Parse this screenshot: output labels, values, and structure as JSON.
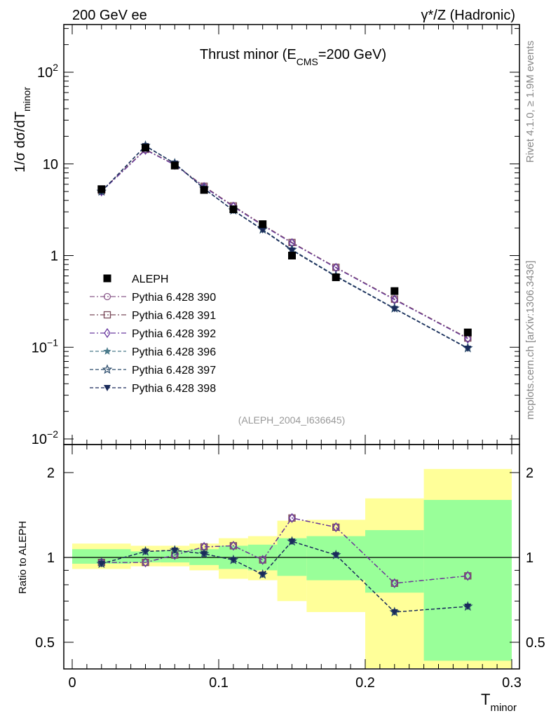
{
  "header": {
    "left": "200 GeV ee",
    "right_sym": "γ*/Z",
    "right_text": "(Hadronic)"
  },
  "plot_title": {
    "main": "Thrust minor (E",
    "sub": "CMS",
    "tail": "=200 GeV)"
  },
  "y_label": {
    "main": "1/σ  dσ/dT",
    "sub": "minor"
  },
  "x_label": {
    "main": "T",
    "sub": "minor"
  },
  "ratio_label": "Ratio to ALEPH",
  "analysis_tag": "(ALEPH_2004_I636645)",
  "side_text_top": "Rivet 4.1.0, ≥ 1.9M events",
  "side_text_bottom": "mcplots.cern.ch [arXiv:1306.3436]",
  "colors": {
    "band_yellow": "#ffff99",
    "band_green": "#99ff99",
    "data": "#000000",
    "p390": "#8b5a8b",
    "p391": "#7a4a5a",
    "p392": "#6a3aa0",
    "p396": "#4a7a8a",
    "p397": "#2a4a6a",
    "p398": "#1a2a5a"
  },
  "chart_data": [
    {
      "type": "line",
      "panel": "main",
      "yscale": "log",
      "xlim": [
        -0.01,
        0.3
      ],
      "ylim": [
        0.008,
        330
      ],
      "x_ticks": [
        0,
        0.1,
        0.2,
        0.3
      ],
      "y_ticks": [
        {
          "value": 0.01,
          "base": "10",
          "exp": "−2"
        },
        {
          "value": 0.1,
          "base": "10",
          "exp": "−1"
        },
        {
          "value": 1,
          "base": "1",
          "exp": ""
        },
        {
          "value": 10,
          "base": "10",
          "exp": ""
        },
        {
          "value": 100,
          "base": "10",
          "exp": "2"
        }
      ],
      "data": {
        "name": "ALEPH",
        "x": [
          0.02,
          0.05,
          0.07,
          0.09,
          0.11,
          0.13,
          0.15,
          0.18,
          0.22,
          0.27
        ],
        "y": [
          5.3,
          15.0,
          9.6,
          5.2,
          3.2,
          2.2,
          1.0,
          0.58,
          0.41,
          0.145
        ]
      },
      "series": [
        {
          "name": "Pythia 6.428 390",
          "marker": "circle",
          "dash": "dashdot",
          "color_key": "p390",
          "y": [
            5.05,
            14.3,
            9.8,
            5.65,
            3.45,
            2.15,
            1.38,
            0.74,
            0.33,
            0.125
          ]
        },
        {
          "name": "Pythia 6.428 391",
          "marker": "square",
          "dash": "dashdot",
          "color_key": "p391",
          "y": [
            5.1,
            14.4,
            9.85,
            5.7,
            3.48,
            2.17,
            1.39,
            0.745,
            0.335,
            0.126
          ]
        },
        {
          "name": "Pythia 6.428 392",
          "marker": "diamond",
          "dash": "dashdot",
          "color_key": "p392",
          "y": [
            5.0,
            14.2,
            9.75,
            5.6,
            3.42,
            2.13,
            1.37,
            0.735,
            0.33,
            0.124
          ]
        },
        {
          "name": "Pythia 6.428 396",
          "marker": "star",
          "dash": "dashed",
          "color_key": "p396",
          "y": [
            5.0,
            15.6,
            10.1,
            5.4,
            3.1,
            1.92,
            1.15,
            0.6,
            0.265,
            0.098
          ]
        },
        {
          "name": "Pythia 6.428 397",
          "marker": "staropen",
          "dash": "dashed",
          "color_key": "p397",
          "y": [
            5.0,
            15.8,
            10.15,
            5.4,
            3.12,
            1.93,
            1.16,
            0.6,
            0.266,
            0.098
          ]
        },
        {
          "name": "Pythia 6.428 398",
          "marker": "triangle",
          "dash": "dashed",
          "color_key": "p398",
          "y": [
            5.0,
            15.7,
            10.1,
            5.35,
            3.1,
            1.9,
            1.14,
            0.59,
            0.263,
            0.097
          ]
        }
      ],
      "legend": [
        {
          "label": "ALEPH",
          "marker": "filledsquare",
          "color_key": "data"
        },
        {
          "label": "Pythia 6.428 390",
          "marker": "circle",
          "color_key": "p390"
        },
        {
          "label": "Pythia 6.428 391",
          "marker": "square",
          "color_key": "p391"
        },
        {
          "label": "Pythia 6.428 392",
          "marker": "diamond",
          "color_key": "p392"
        },
        {
          "label": "Pythia 6.428 396",
          "marker": "star",
          "color_key": "p396"
        },
        {
          "label": "Pythia 6.428 397",
          "marker": "staropen",
          "color_key": "p397"
        },
        {
          "label": "Pythia 6.428 398",
          "marker": "triangle",
          "color_key": "p398"
        }
      ]
    },
    {
      "type": "line",
      "panel": "ratio",
      "xlim": [
        -0.01,
        0.3
      ],
      "ylim": [
        0.44,
        2.3
      ],
      "x_ticks": [
        0,
        0.1,
        0.2,
        0.3
      ],
      "x_tick_labels": [
        "0",
        "0.1",
        "0.2",
        "0.3"
      ],
      "y_ticks": [
        0.5,
        1,
        2
      ],
      "y_tick_labels": [
        "0.5",
        "1",
        "2"
      ],
      "bins": [
        {
          "lo": 0.0,
          "hi": 0.04,
          "y_lo": 0.91,
          "y_hi": 1.12,
          "g_lo": 0.95,
          "g_hi": 1.07
        },
        {
          "lo": 0.04,
          "hi": 0.06,
          "y_lo": 0.93,
          "y_hi": 1.1,
          "g_lo": 0.96,
          "g_hi": 1.05
        },
        {
          "lo": 0.06,
          "hi": 0.08,
          "y_lo": 0.93,
          "y_hi": 1.1,
          "g_lo": 0.96,
          "g_hi": 1.06
        },
        {
          "lo": 0.08,
          "hi": 0.1,
          "y_lo": 0.9,
          "y_hi": 1.12,
          "g_lo": 0.94,
          "g_hi": 1.07
        },
        {
          "lo": 0.1,
          "hi": 0.12,
          "y_lo": 0.84,
          "y_hi": 1.17,
          "g_lo": 0.91,
          "g_hi": 1.1
        },
        {
          "lo": 0.12,
          "hi": 0.14,
          "y_lo": 0.83,
          "y_hi": 1.19,
          "g_lo": 0.9,
          "g_hi": 1.11
        },
        {
          "lo": 0.14,
          "hi": 0.16,
          "y_lo": 0.7,
          "y_hi": 1.35,
          "g_lo": 0.86,
          "g_hi": 1.17
        },
        {
          "lo": 0.16,
          "hi": 0.2,
          "y_lo": 0.64,
          "y_hi": 1.36,
          "g_lo": 0.83,
          "g_hi": 1.19
        },
        {
          "lo": 0.2,
          "hi": 0.24,
          "y_lo": 0.37,
          "y_hi": 1.62,
          "g_lo": 0.75,
          "g_hi": 1.25
        },
        {
          "lo": 0.24,
          "hi": 0.3,
          "y_lo": 0.35,
          "y_hi": 2.06,
          "g_lo": 0.43,
          "g_hi": 1.6
        }
      ],
      "x": [
        0.02,
        0.05,
        0.07,
        0.09,
        0.11,
        0.13,
        0.15,
        0.18,
        0.22,
        0.27
      ],
      "series": [
        {
          "name": "Pythia 6.428 390",
          "marker": "circle",
          "dash": "dashdot",
          "color_key": "p390",
          "values": [
            0.96,
            0.96,
            1.02,
            1.09,
            1.1,
            0.98,
            1.38,
            1.28,
            0.81,
            0.86
          ]
        },
        {
          "name": "Pythia 6.428 391",
          "marker": "square",
          "dash": "dashdot",
          "color_key": "p391",
          "values": [
            0.96,
            0.96,
            1.02,
            1.09,
            1.1,
            0.98,
            1.38,
            1.28,
            0.81,
            0.86
          ]
        },
        {
          "name": "Pythia 6.428 392",
          "marker": "diamond",
          "dash": "dashdot",
          "color_key": "p392",
          "values": [
            0.96,
            0.96,
            1.02,
            1.09,
            1.1,
            0.98,
            1.38,
            1.28,
            0.81,
            0.86
          ]
        },
        {
          "name": "Pythia 6.428 396",
          "marker": "star",
          "dash": "dashed",
          "color_key": "p396",
          "values": [
            0.95,
            1.05,
            1.06,
            1.03,
            0.98,
            0.87,
            1.14,
            1.02,
            0.64,
            0.67
          ]
        },
        {
          "name": "Pythia 6.428 397",
          "marker": "staropen",
          "dash": "dashed",
          "color_key": "p397",
          "values": [
            0.95,
            1.05,
            1.06,
            1.03,
            0.98,
            0.87,
            1.14,
            1.02,
            0.64,
            0.67
          ]
        },
        {
          "name": "Pythia 6.428 398",
          "marker": "triangle",
          "dash": "dashed",
          "color_key": "p398",
          "values": [
            0.95,
            1.05,
            1.06,
            1.03,
            0.98,
            0.87,
            1.14,
            1.02,
            0.64,
            0.67
          ]
        }
      ]
    }
  ]
}
